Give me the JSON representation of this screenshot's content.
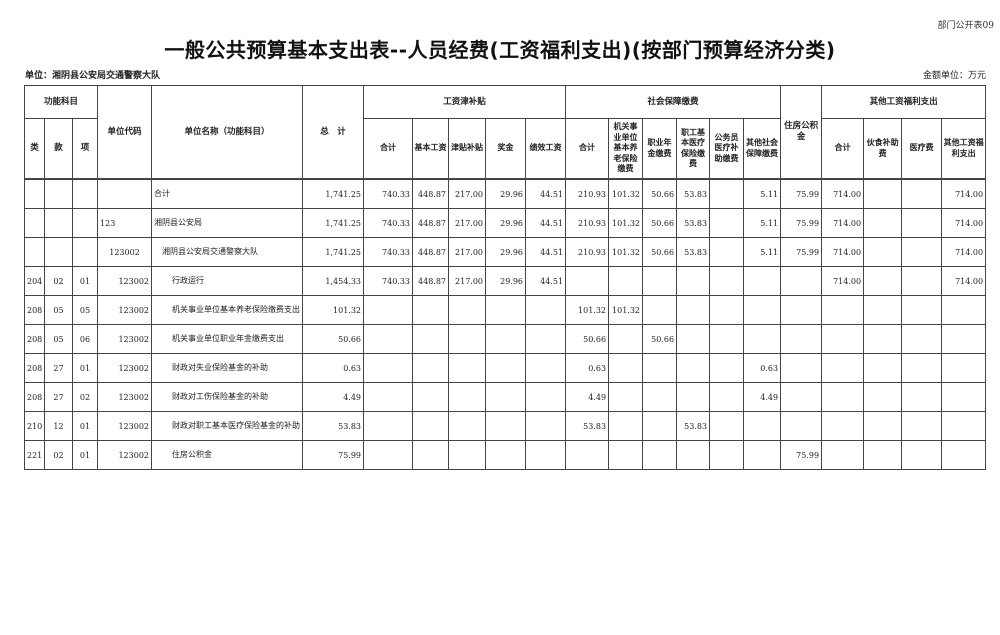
{
  "form_no": "部门公开表09",
  "title": "一般公共预算基本支出表--人员经费(工资福利支出)(按部门预算经济分类)",
  "unit_label": "单位：湘阴县公安局交通警察大队",
  "money_unit": "金额单位：万元",
  "headers": {
    "func": "功能科目",
    "lei": "类",
    "kuan": "款",
    "xiang": "项",
    "code": "单位代码",
    "name": "单位名称（功能科目）",
    "total": "总　计",
    "wage_group": "工资津补贴",
    "wage": [
      "合计",
      "基本工资",
      "津贴补贴",
      "奖金",
      "绩效工资"
    ],
    "social_group": "社会保障缴费",
    "social": [
      "合计",
      "机关事业单位基本养老保险缴费",
      "职业年金缴费",
      "职工基本医疗保险缴费",
      "公务员医疗补助缴费",
      "其他社会保障缴费"
    ],
    "housing": "住房公积金",
    "other_group": "其他工资福利支出",
    "other": [
      "合计",
      "伙食补助费",
      "医疗费",
      "其他工资福利支出"
    ]
  },
  "rows": [
    {
      "level": 0,
      "cells": [
        "",
        "",
        "",
        "",
        "合计",
        "1,741.25",
        "740.33",
        "448.87",
        "217.00",
        "29.96",
        "44.51",
        "210.93",
        "101.32",
        "50.66",
        "53.83",
        "",
        "5.11",
        "75.99",
        "714.00",
        "",
        "",
        "714.00"
      ]
    },
    {
      "level": 0,
      "cells": [
        "",
        "",
        "",
        "123",
        "湘阴县公安局",
        "1,741.25",
        "740.33",
        "448.87",
        "217.00",
        "29.96",
        "44.51",
        "210.93",
        "101.32",
        "50.66",
        "53.83",
        "",
        "5.11",
        "75.99",
        "714.00",
        "",
        "",
        "714.00"
      ]
    },
    {
      "level": 1,
      "cells": [
        "",
        "",
        "",
        "123002",
        "湘阴县公安局交通警察大队",
        "1,741.25",
        "740.33",
        "448.87",
        "217.00",
        "29.96",
        "44.51",
        "210.93",
        "101.32",
        "50.66",
        "53.83",
        "",
        "5.11",
        "75.99",
        "714.00",
        "",
        "",
        "714.00"
      ]
    },
    {
      "level": 2,
      "cells": [
        "204",
        "02",
        "01",
        "123002",
        "行政运行",
        "1,454.33",
        "740.33",
        "448.87",
        "217.00",
        "29.96",
        "44.51",
        "",
        "",
        "",
        "",
        "",
        "",
        "",
        "714.00",
        "",
        "",
        "714.00"
      ]
    },
    {
      "level": 2,
      "cells": [
        "208",
        "05",
        "05",
        "123002",
        "机关事业单位基本养老保险缴费支出",
        "101.32",
        "",
        "",
        "",
        "",
        "",
        "101.32",
        "101.32",
        "",
        "",
        "",
        "",
        "",
        "",
        "",
        "",
        ""
      ]
    },
    {
      "level": 2,
      "cells": [
        "208",
        "05",
        "06",
        "123002",
        "机关事业单位职业年金缴费支出",
        "50.66",
        "",
        "",
        "",
        "",
        "",
        "50.66",
        "",
        "50.66",
        "",
        "",
        "",
        "",
        "",
        "",
        "",
        ""
      ]
    },
    {
      "level": 2,
      "cells": [
        "208",
        "27",
        "01",
        "123002",
        "财政对失业保险基金的补助",
        "0.63",
        "",
        "",
        "",
        "",
        "",
        "0.63",
        "",
        "",
        "",
        "",
        "0.63",
        "",
        "",
        "",
        "",
        ""
      ]
    },
    {
      "level": 2,
      "cells": [
        "208",
        "27",
        "02",
        "123002",
        "财政对工伤保险基金的补助",
        "4.49",
        "",
        "",
        "",
        "",
        "",
        "4.49",
        "",
        "",
        "",
        "",
        "4.49",
        "",
        "",
        "",
        "",
        ""
      ]
    },
    {
      "level": 2,
      "cells": [
        "210",
        "12",
        "01",
        "123002",
        "财政对职工基本医疗保险基金的补助",
        "53.83",
        "",
        "",
        "",
        "",
        "",
        "53.83",
        "",
        "",
        "53.83",
        "",
        "",
        "",
        "",
        "",
        "",
        ""
      ]
    },
    {
      "level": 2,
      "cells": [
        "221",
        "02",
        "01",
        "123002",
        "住房公积金",
        "75.99",
        "",
        "",
        "",
        "",
        "",
        "",
        "",
        "",
        "",
        "",
        "",
        "75.99",
        "",
        "",
        "",
        ""
      ]
    }
  ]
}
